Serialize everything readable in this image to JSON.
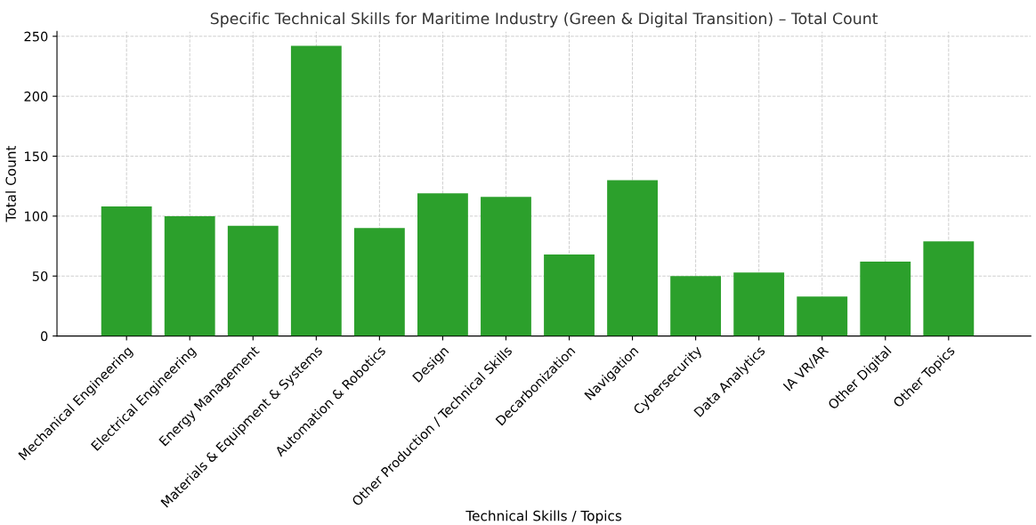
{
  "chart_data": {
    "type": "bar",
    "title": "Specific Technical Skills for Maritime Industry (Green & Digital Transition) – Total Count",
    "xlabel": "Technical Skills / Topics",
    "ylabel": "Total Count",
    "categories": [
      "Mechanical Engineering",
      "Electrical Engineering",
      "Energy Management",
      "Materials & Equipment & Systems",
      "Automation & Robotics",
      "Design",
      "Other Production / Technical Skills",
      "Decarbonization",
      "Navigation",
      "Cybersecurity",
      "Data Analytics",
      "IA VR/AR",
      "Other Digital",
      "Other Topics"
    ],
    "values": [
      108,
      100,
      92,
      242,
      90,
      119,
      116,
      68,
      130,
      50,
      53,
      33,
      62,
      79
    ],
    "color": "#2ca02c",
    "ylim": [
      0,
      254
    ],
    "yticks": [
      0,
      50,
      100,
      150,
      200,
      250
    ],
    "grid": true
  }
}
